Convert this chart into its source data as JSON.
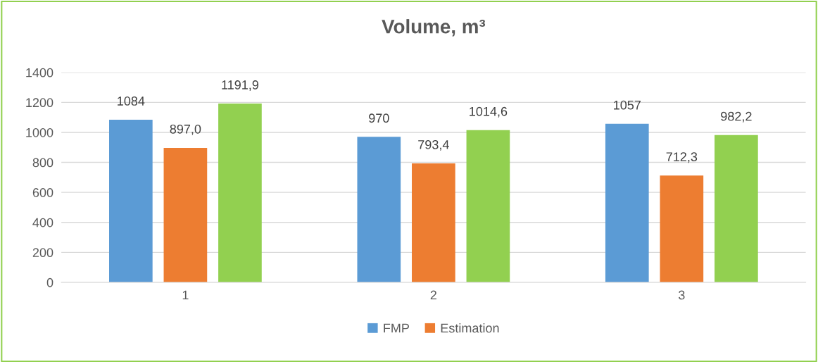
{
  "chart_data": {
    "type": "bar",
    "title": "Volume, m³",
    "categories": [
      "1",
      "2",
      "3"
    ],
    "series": [
      {
        "name": "FMP",
        "color": "#5b9bd5",
        "values": [
          1084,
          970,
          1057
        ],
        "value_labels": [
          "1084",
          "970",
          "1057"
        ]
      },
      {
        "name": "Estimation",
        "color": "#ed7d31",
        "values": [
          897.0,
          793.4,
          712.3
        ],
        "value_labels": [
          "897,0",
          "793,4",
          "712,3"
        ]
      },
      {
        "color": "#92d050",
        "values": [
          1191.9,
          1014.6,
          982.2
        ],
        "value_labels": [
          "1191,9",
          "1014,6",
          "982,2"
        ]
      }
    ],
    "ylim": [
      0,
      1400
    ],
    "yticks": [
      0,
      200,
      400,
      600,
      800,
      1000,
      1200,
      1400
    ],
    "grid": "y",
    "legend": "bottom"
  }
}
